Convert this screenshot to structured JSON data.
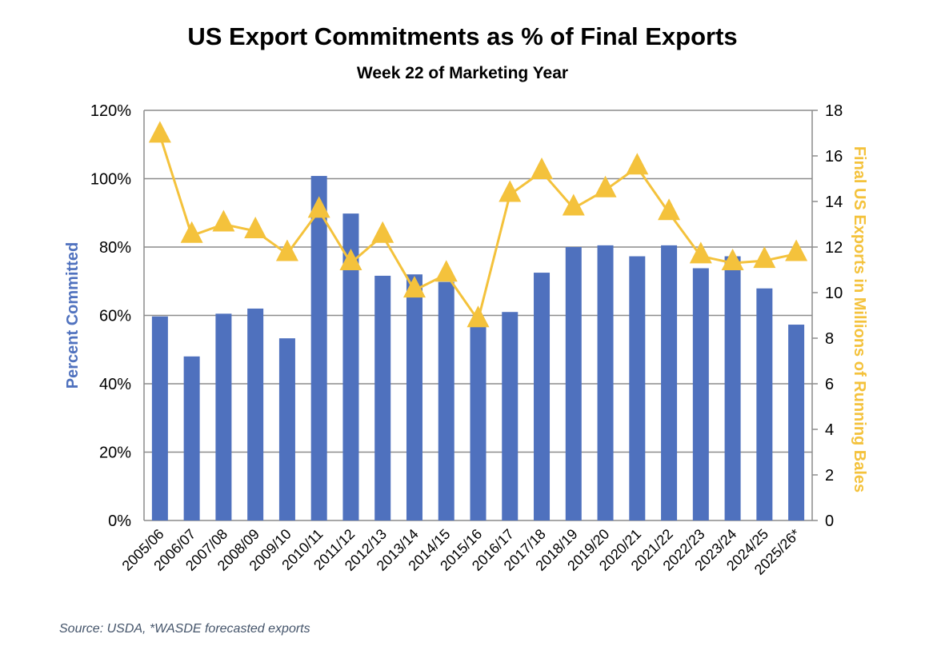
{
  "chart_data": {
    "type": "bar+line",
    "title": "US Export Commitments as % of Final Exports",
    "subtitle": "Week 22 of Marketing Year",
    "source": "Source: USDA, *WASDE forecasted exports",
    "categories": [
      "2005/06",
      "2006/07",
      "2007/08",
      "2008/09",
      "2009/10",
      "2010/11",
      "2011/12",
      "2012/13",
      "2013/14",
      "2014/15",
      "2015/16",
      "2016/17",
      "2017/18",
      "2018/19",
      "2019/20",
      "2020/21",
      "2021/22",
      "2022/23",
      "2023/24",
      "2024/25",
      "2025/26*"
    ],
    "series": [
      {
        "name": "Percent Committed",
        "type": "bar",
        "axis": "left",
        "color": "#4F71BE",
        "values": [
          59.7,
          48,
          60.5,
          62,
          53.3,
          100.8,
          89.8,
          71.6,
          72,
          69.8,
          56.6,
          61,
          72.5,
          80,
          80.5,
          77.3,
          80.5,
          73.8,
          77.3,
          67.9,
          57.3
        ]
      },
      {
        "name": "Final US Exports in Millions of Running Bales",
        "type": "line",
        "axis": "right",
        "color": "#F4C23C",
        "marker": "triangle",
        "values": [
          16.9,
          12.5,
          13.0,
          12.7,
          11.7,
          13.6,
          11.3,
          12.5,
          10.1,
          10.8,
          8.8,
          14.3,
          15.3,
          13.7,
          14.5,
          15.5,
          13.5,
          11.6,
          11.3,
          11.4,
          11.7
        ]
      }
    ],
    "y_left": {
      "label": "Percent Committed",
      "range": [
        0,
        120
      ],
      "ticks": [
        "0%",
        "20%",
        "40%",
        "60%",
        "80%",
        "100%",
        "120%"
      ],
      "color": "#4F71BE"
    },
    "y_right": {
      "label": "Final US Exports in Millions of Running Bales",
      "range": [
        0,
        18
      ],
      "ticks": [
        "0",
        "2",
        "4",
        "6",
        "8",
        "10",
        "12",
        "14",
        "16",
        "18"
      ],
      "color": "#F4C23C"
    },
    "grid": true,
    "legend": "none"
  }
}
